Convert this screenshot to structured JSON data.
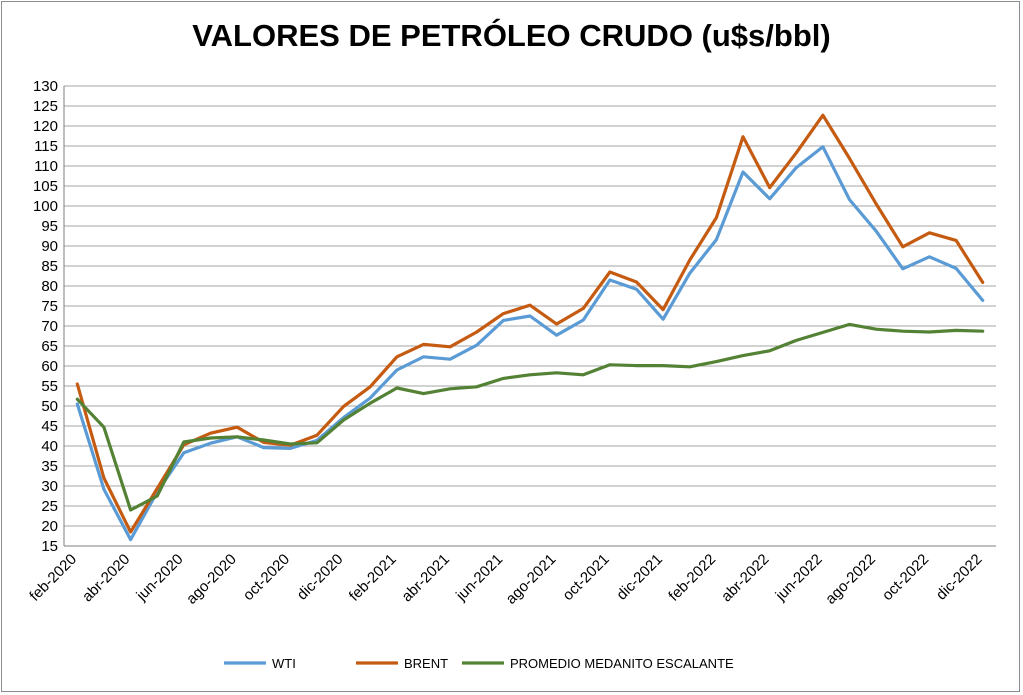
{
  "chart_data": {
    "type": "line",
    "title": "VALORES DE PETRÓLEO CRUDO (u$s/bbl)",
    "xlabel": "",
    "ylabel": "",
    "ylim": [
      15,
      130
    ],
    "ytick_step": 5,
    "grid": "horizontal",
    "legend_position": "bottom",
    "categories": [
      "feb-2020",
      "mar-2020",
      "abr-2020",
      "may-2020",
      "jun-2020",
      "jul-2020",
      "ago-2020",
      "sep-2020",
      "oct-2020",
      "nov-2020",
      "dic-2020",
      "ene-2021",
      "feb-2021",
      "mar-2021",
      "abr-2021",
      "may-2021",
      "jun-2021",
      "jul-2021",
      "ago-2021",
      "sep-2021",
      "oct-2021",
      "nov-2021",
      "dic-2021",
      "ene-2022",
      "feb-2022",
      "mar-2022",
      "abr-2022",
      "may-2022",
      "jun-2022",
      "jul-2022",
      "ago-2022",
      "sep-2022",
      "oct-2022",
      "nov-2022",
      "dic-2022"
    ],
    "x_tick_labels": [
      "feb-2020",
      "abr-2020",
      "jun-2020",
      "ago-2020",
      "oct-2020",
      "dic-2020",
      "feb-2021",
      "abr-2021",
      "jun-2021",
      "ago-2021",
      "oct-2021",
      "dic-2021",
      "feb-2022",
      "abr-2022",
      "jun-2022",
      "ago-2022",
      "oct-2022",
      "dic-2022"
    ],
    "series": [
      {
        "name": "WTI",
        "color": "#5b9bd5",
        "values": [
          50.5,
          29.2,
          16.6,
          28.5,
          38.3,
          40.7,
          42.3,
          39.6,
          39.4,
          41.4,
          47.1,
          52.0,
          59.0,
          62.3,
          61.7,
          65.2,
          71.4,
          72.5,
          67.7,
          71.5,
          81.5,
          79.2,
          71.7,
          83.2,
          91.6,
          108.5,
          101.8,
          109.6,
          114.8,
          101.6,
          93.7,
          84.3,
          87.3,
          84.4,
          76.4
        ]
      },
      {
        "name": "BRENT",
        "color": "#c55a11",
        "values": [
          55.5,
          32.0,
          18.5,
          29.4,
          40.3,
          43.2,
          44.7,
          40.9,
          40.2,
          42.7,
          49.9,
          54.8,
          62.3,
          65.4,
          64.8,
          68.5,
          73.1,
          75.2,
          70.5,
          74.4,
          83.5,
          81.0,
          74.1,
          86.5,
          97.1,
          117.3,
          104.6,
          113.3,
          122.7,
          111.9,
          100.5,
          89.8,
          93.3,
          91.4,
          80.9
        ]
      },
      {
        "name": "PROMEDIO MEDANITO ESCALANTE",
        "color": "#548235",
        "values": [
          51.7,
          44.7,
          24.0,
          27.5,
          41.0,
          42.0,
          42.3,
          41.5,
          40.5,
          40.8,
          46.5,
          50.7,
          54.5,
          53.1,
          54.3,
          54.8,
          56.9,
          57.8,
          58.3,
          57.8,
          60.3,
          60.1,
          60.1,
          59.8,
          61.1,
          62.6,
          63.8,
          66.4,
          68.4,
          70.4,
          69.2,
          68.7,
          68.5,
          68.9,
          68.7
        ]
      }
    ]
  }
}
